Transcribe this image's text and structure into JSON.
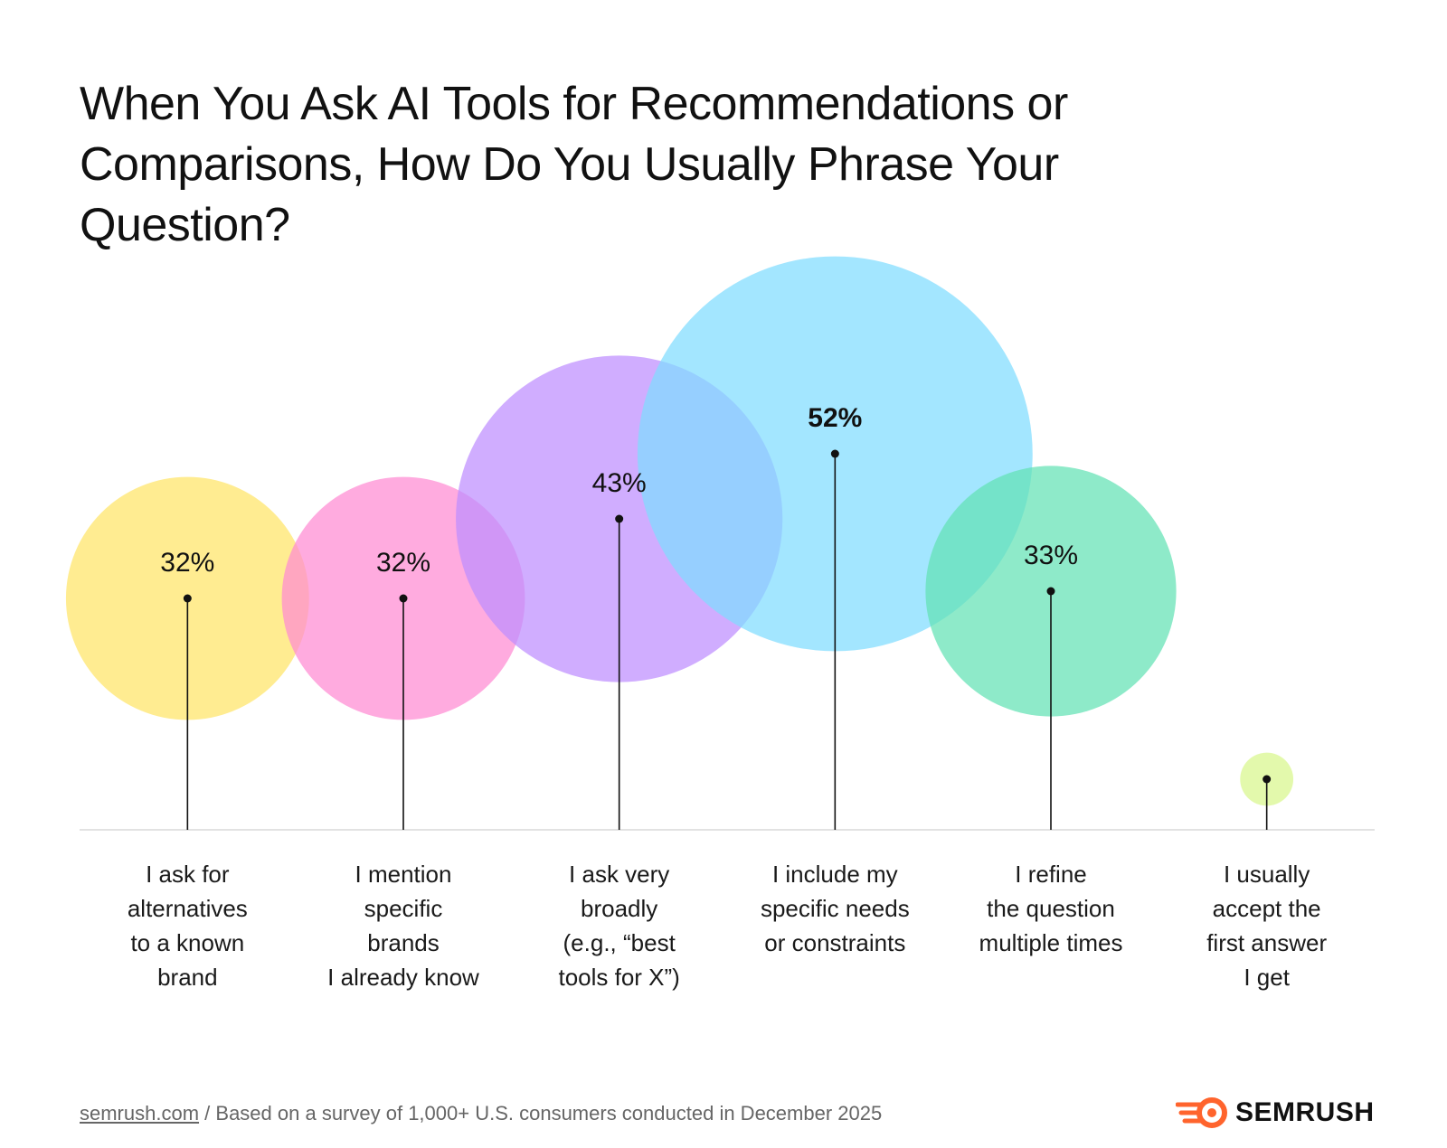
{
  "chart_data": {
    "type": "bubble",
    "title": "When You Ask AI Tools for Recommendations or Comparisons, How Do You Usually Phrase Your Question?",
    "categories": [
      "I ask for\nalternatives\nto a known\nbrand",
      "I mention\nspecific\nbrands\nI already know",
      "I ask very\nbroadly\n(e.g., “best\ntools for X”)",
      "I include my\nspecific needs\nor constraints",
      "I refine\nthe question\nmultiple times",
      "I usually\naccept the\nfirst answer\nI get"
    ],
    "values": [
      32,
      32,
      43,
      52,
      33,
      7
    ],
    "value_labels": [
      "32%",
      "32%",
      "43%",
      "52%",
      "33%",
      null
    ],
    "colors": [
      "#FFE566",
      "#FF8AD2",
      "#BE8DFF",
      "#7FDDFF",
      "#62E2B4",
      "#D8F78C"
    ],
    "footer": {
      "source": "semrush.com",
      "note": "/ Based on a survey of 1,000+ U.S. consumers conducted in December 2025"
    },
    "brand": "SEMRUSH"
  }
}
